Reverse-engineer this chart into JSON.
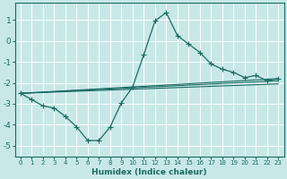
{
  "xlabel": "Humidex (Indice chaleur)",
  "xlim": [
    -0.5,
    23.5
  ],
  "ylim": [
    -5.5,
    1.8
  ],
  "yticks": [
    1,
    0,
    -1,
    -2,
    -3,
    -4,
    -5
  ],
  "xticks": [
    0,
    1,
    2,
    3,
    4,
    5,
    6,
    7,
    8,
    9,
    10,
    11,
    12,
    13,
    14,
    15,
    16,
    17,
    18,
    19,
    20,
    21,
    22,
    23
  ],
  "bg_color": "#c8e8e8",
  "grid_color": "#b0d4d4",
  "line_color": "#1a6b60",
  "curve": {
    "x": [
      0,
      1,
      2,
      3,
      4,
      5,
      6,
      7,
      8,
      9,
      10,
      11,
      12,
      13,
      14,
      15,
      16,
      17,
      18,
      19,
      20,
      21,
      22,
      23
    ],
    "y": [
      -2.5,
      -2.8,
      -3.1,
      -3.2,
      -3.6,
      -4.1,
      -4.75,
      -4.75,
      -4.1,
      -2.95,
      -2.2,
      -0.65,
      0.95,
      1.35,
      0.25,
      -0.15,
      -0.55,
      -1.1,
      -1.35,
      -1.5,
      -1.75,
      -1.65,
      -1.9,
      -1.8
    ]
  },
  "straight_lines": [
    {
      "x0": 0,
      "y0": -2.5,
      "x1": 23,
      "y1": -1.8
    },
    {
      "x0": 0,
      "y0": -2.5,
      "x1": 23,
      "y1": -1.9
    },
    {
      "x0": 0,
      "y0": -2.5,
      "x1": 23,
      "y1": -2.05
    }
  ]
}
